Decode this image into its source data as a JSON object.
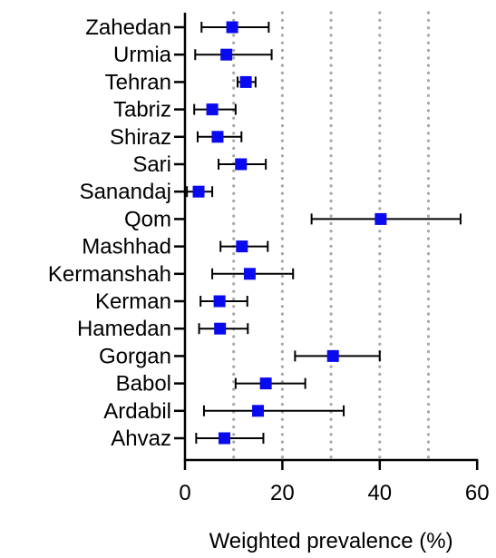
{
  "chart_data": {
    "type": "forest",
    "categories": [
      "Zahedan",
      "Urmia",
      "Tehran",
      "Tabriz",
      "Shiraz",
      "Sari",
      "Sanandaj",
      "Qom",
      "Mashhad",
      "Kermanshah",
      "Kerman",
      "Hamedan",
      "Gorgan",
      "Babol",
      "Ardabil",
      "Ahvaz"
    ],
    "estimates": [
      9.7,
      8.5,
      12.5,
      5.6,
      6.7,
      11.5,
      2.8,
      40.2,
      11.7,
      13.3,
      7.1,
      7.2,
      30.4,
      16.6,
      15.0,
      8.1
    ],
    "ci_lower": [
      3.4,
      2.1,
      10.8,
      1.9,
      2.6,
      6.9,
      0.4,
      26.0,
      7.3,
      5.6,
      3.2,
      2.9,
      22.6,
      10.4,
      3.9,
      2.3
    ],
    "ci_upper": [
      17.2,
      17.8,
      14.5,
      10.4,
      11.6,
      16.6,
      5.6,
      56.6,
      17.0,
      22.2,
      12.8,
      12.9,
      40.0,
      24.7,
      32.6,
      16.1
    ],
    "xlabel": "Weighted prevalence (%)",
    "xlim": [
      0,
      60
    ],
    "xticks": [
      0,
      20,
      40,
      60
    ],
    "xtick_labels": [
      "0",
      "20",
      "40",
      "60"
    ],
    "gridlines_dotted": [
      10,
      20,
      30,
      40,
      50
    ],
    "grid": "vertical dotted",
    "marker": "square",
    "colors": {
      "marker": "#0a0aee",
      "errorbar": "#000000",
      "axis": "#000000",
      "grid": "#a8a8a8"
    }
  }
}
